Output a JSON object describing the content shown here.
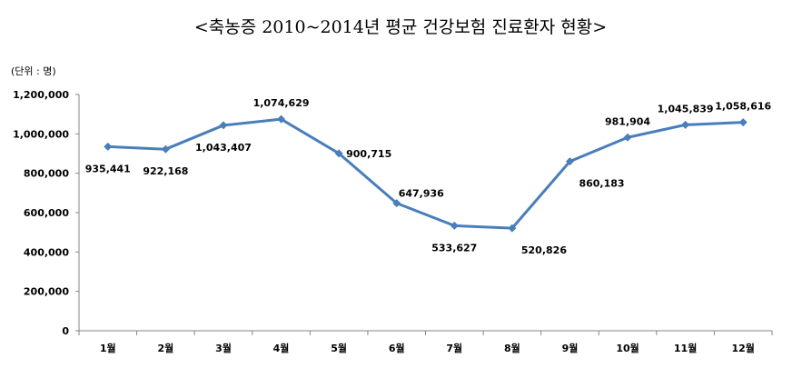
{
  "chart_data": {
    "type": "line",
    "title": "<축농증 2010~2014년 평균 건강보험 진료환자 현황>",
    "unit_label": "(단위 : 명)",
    "xlabel": "",
    "ylabel": "",
    "ylim": [
      0,
      1200000
    ],
    "yticks": [
      0,
      200000,
      400000,
      600000,
      800000,
      1000000,
      1200000
    ],
    "ytick_labels": [
      "0",
      "200,000",
      "400,000",
      "600,000",
      "800,000",
      "1,000,000",
      "1,200,000"
    ],
    "categories": [
      "1월",
      "2월",
      "3월",
      "4월",
      "5월",
      "6월",
      "7월",
      "8월",
      "9월",
      "10월",
      "11월",
      "12월"
    ],
    "series": [
      {
        "name": "진료환자",
        "color": "#4a7ebb",
        "values": [
          935441,
          922168,
          1043407,
          1074629,
          900715,
          647936,
          533627,
          520826,
          860183,
          981904,
          1045839,
          1058616
        ],
        "labels": [
          "935,441",
          "922,168",
          "1,043,407",
          "1,074,629",
          "900,715",
          "647,936",
          "533,627",
          "520,826",
          "860,183",
          "981,904",
          "1,045,839",
          "1,058,616"
        ],
        "label_placement": [
          "below",
          "below",
          "below",
          "above",
          "right",
          "above-right",
          "below",
          "below-right",
          "below-right",
          "above",
          "above",
          "above"
        ]
      }
    ],
    "grid": false,
    "legend": "none"
  }
}
